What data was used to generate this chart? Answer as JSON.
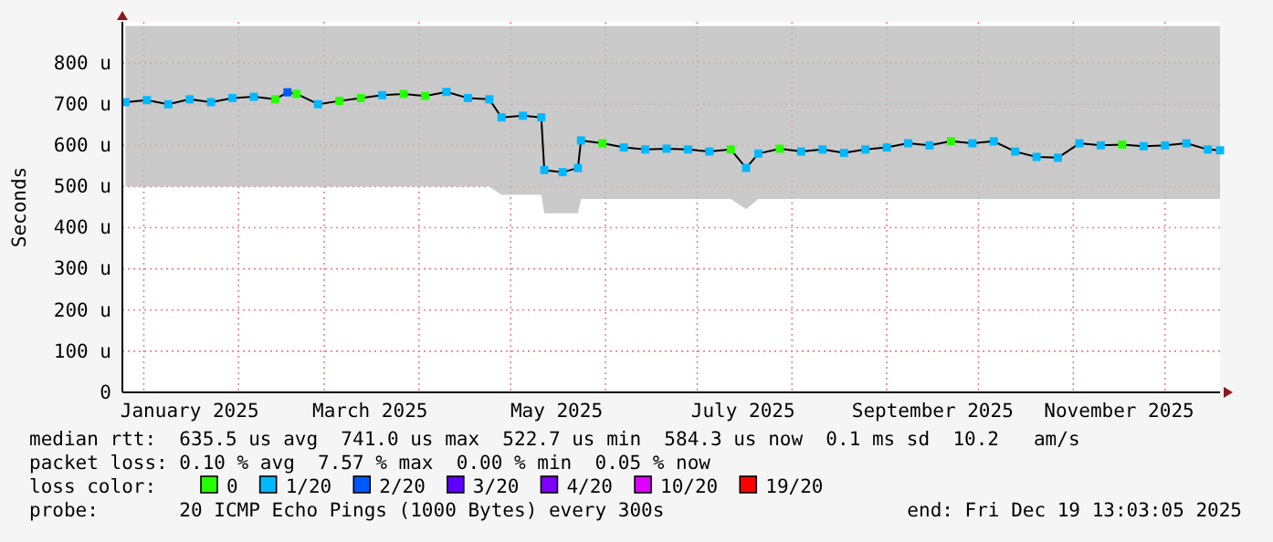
{
  "chart_data": {
    "type": "line",
    "ylabel": "Seconds",
    "xlim": [
      "2024-12-25",
      "2025-12-19"
    ],
    "ylim": [
      0,
      900
    ],
    "xticks": [
      {
        "value": "2025-01-01",
        "label": null
      },
      {
        "value": "2025-01-16",
        "label": "January 2025"
      },
      {
        "value": "2025-02-01",
        "label": null
      },
      {
        "value": "2025-03-01",
        "label": null
      },
      {
        "value": "2025-03-16",
        "label": "March 2025"
      },
      {
        "value": "2025-04-01",
        "label": null
      },
      {
        "value": "2025-05-01",
        "label": null
      },
      {
        "value": "2025-05-16",
        "label": "May 2025"
      },
      {
        "value": "2025-06-01",
        "label": null
      },
      {
        "value": "2025-07-01",
        "label": null
      },
      {
        "value": "2025-07-16",
        "label": "July 2025"
      },
      {
        "value": "2025-08-01",
        "label": null
      },
      {
        "value": "2025-09-01",
        "label": null
      },
      {
        "value": "2025-09-16",
        "label": "September 2025"
      },
      {
        "value": "2025-10-01",
        "label": null
      },
      {
        "value": "2025-11-01",
        "label": null
      },
      {
        "value": "2025-11-16",
        "label": "November 2025"
      },
      {
        "value": "2025-12-01",
        "label": null
      }
    ],
    "yticks": [
      0,
      {
        "value": 100,
        "label": "100 u"
      },
      {
        "value": 200,
        "label": "200 u"
      },
      {
        "value": 300,
        "label": "300 u"
      },
      {
        "value": 400,
        "label": "400 u"
      },
      {
        "value": 500,
        "label": "500 u"
      },
      {
        "value": 600,
        "label": "600 u"
      },
      {
        "value": 700,
        "label": "700 u"
      },
      {
        "value": 800,
        "label": "800 u"
      }
    ],
    "grid": true,
    "legend": "bottom",
    "legend_title": "loss color:",
    "series": [
      {
        "marker": "none",
        "color": "#000000",
        "x": [
          "2024-12-26",
          "2025-01-02",
          "2025-01-09",
          "2025-01-16",
          "2025-01-23",
          "2025-01-30",
          "2025-02-06",
          "2025-02-13",
          "2025-02-17",
          "2025-02-20",
          "2025-02-27",
          "2025-03-06",
          "2025-03-13",
          "2025-03-20",
          "2025-03-27",
          "2025-04-03",
          "2025-04-10",
          "2025-04-17",
          "2025-04-24",
          "2025-04-28",
          "2025-05-05",
          "2025-05-11",
          "2025-05-12",
          "2025-05-18",
          "2025-05-23",
          "2025-05-24",
          "2025-05-31",
          "2025-06-07",
          "2025-06-14",
          "2025-06-21",
          "2025-06-28",
          "2025-07-05",
          "2025-07-12",
          "2025-07-17",
          "2025-07-21",
          "2025-07-28",
          "2025-08-04",
          "2025-08-11",
          "2025-08-18",
          "2025-08-25",
          "2025-09-01",
          "2025-09-08",
          "2025-09-15",
          "2025-09-22",
          "2025-09-29",
          "2025-10-06",
          "2025-10-13",
          "2025-10-20",
          "2025-10-27",
          "2025-11-03",
          "2025-11-10",
          "2025-11-17",
          "2025-11-24",
          "2025-12-01",
          "2025-12-08",
          "2025-12-15",
          "2025-12-19"
        ],
        "values": [
          705,
          710,
          700,
          712,
          705,
          715,
          718,
          712,
          729,
          725,
          700,
          708,
          715,
          722,
          725,
          720,
          730,
          715,
          712,
          668,
          672,
          668,
          540,
          535,
          545,
          612,
          605,
          595,
          590,
          592,
          590,
          585,
          590,
          545,
          580,
          592,
          585,
          590,
          582,
          590,
          595,
          605,
          600,
          610,
          605,
          610,
          585,
          572,
          570,
          605,
          600,
          602,
          598,
          600,
          605,
          590,
          588
        ],
        "lower": [
          500,
          500,
          500,
          500,
          500,
          500,
          500,
          500,
          500,
          500,
          500,
          500,
          500,
          500,
          500,
          500,
          500,
          500,
          500,
          480,
          480,
          480,
          435,
          435,
          435,
          470,
          470,
          470,
          470,
          470,
          470,
          470,
          470,
          445,
          470,
          470,
          470,
          470,
          470,
          470,
          470,
          470,
          470,
          470,
          470,
          470,
          470,
          470,
          470,
          470,
          470,
          470,
          470,
          470,
          470,
          470,
          470
        ],
        "upper": [
          890,
          890,
          890,
          890,
          890,
          890,
          890,
          890,
          890,
          890,
          890,
          890,
          890,
          890,
          890,
          890,
          890,
          890,
          890,
          890,
          890,
          890,
          890,
          890,
          890,
          890,
          890,
          890,
          890,
          890,
          890,
          890,
          890,
          890,
          890,
          890,
          890,
          890,
          890,
          890,
          890,
          890,
          890,
          890,
          890,
          890,
          890,
          890,
          890,
          890,
          890,
          890,
          890,
          890,
          890,
          890,
          890
        ]
      },
      {
        "type": "scatter",
        "name": "0",
        "color": "#26ff00",
        "x": [
          "2025-02-13",
          "2025-02-20",
          "2025-03-06",
          "2025-03-13",
          "2025-03-27",
          "2025-04-03",
          "2025-05-31",
          "2025-07-12",
          "2025-07-28",
          "2025-09-22",
          "2025-11-17"
        ],
        "values": [
          712,
          725,
          708,
          715,
          725,
          720,
          605,
          590,
          592,
          610,
          602
        ]
      },
      {
        "type": "scatter",
        "name": "1/20",
        "color": "#00b8ff",
        "x": [
          "2024-12-26",
          "2025-01-02",
          "2025-01-09",
          "2025-01-16",
          "2025-01-23",
          "2025-01-30",
          "2025-02-06",
          "2025-02-27",
          "2025-03-20",
          "2025-04-10",
          "2025-04-17",
          "2025-04-24",
          "2025-04-28",
          "2025-05-05",
          "2025-05-11",
          "2025-05-12",
          "2025-05-18",
          "2025-05-23",
          "2025-05-24",
          "2025-06-07",
          "2025-06-14",
          "2025-06-21",
          "2025-06-28",
          "2025-07-05",
          "2025-07-17",
          "2025-07-21",
          "2025-08-04",
          "2025-08-11",
          "2025-08-18",
          "2025-08-25",
          "2025-09-01",
          "2025-09-08",
          "2025-09-15",
          "2025-09-29",
          "2025-10-06",
          "2025-10-13",
          "2025-10-20",
          "2025-10-27",
          "2025-11-03",
          "2025-11-10",
          "2025-11-24",
          "2025-12-01",
          "2025-12-08",
          "2025-12-15",
          "2025-12-19"
        ],
        "values": [
          705,
          710,
          700,
          712,
          705,
          715,
          718,
          700,
          722,
          730,
          715,
          712,
          668,
          672,
          668,
          540,
          535,
          545,
          612,
          595,
          590,
          592,
          590,
          585,
          545,
          580,
          585,
          590,
          582,
          590,
          595,
          605,
          600,
          605,
          610,
          585,
          572,
          570,
          605,
          600,
          598,
          600,
          605,
          590,
          588
        ]
      },
      {
        "type": "scatter",
        "name": "2/20",
        "color": "#0059ff",
        "x": [
          "2025-02-17"
        ],
        "values": [
          729
        ]
      },
      {
        "type": "scatter",
        "name": "3/20",
        "color": "#5e00ff"
      },
      {
        "type": "scatter",
        "name": "4/20",
        "color": "#7e00ff"
      },
      {
        "type": "scatter",
        "name": "10/20",
        "color": "#dd00ff"
      },
      {
        "type": "scatter",
        "name": "19/20",
        "color": "#ff0000"
      }
    ],
    "marker": "square",
    "annotations": [
      "median rtt:  635.5 us avg  741.0 us max  522.7 us min  584.3 us now  0.1 ms sd  10.2   am/s",
      "packet loss: 0.10 % avg  7.57 % max  0.00 % min  0.05 % now",
      "probe:       20 ICMP Echo Pings (1000 Bytes) every 300s",
      "end: Fri Dec 19 13:03:05 2025"
    ]
  }
}
